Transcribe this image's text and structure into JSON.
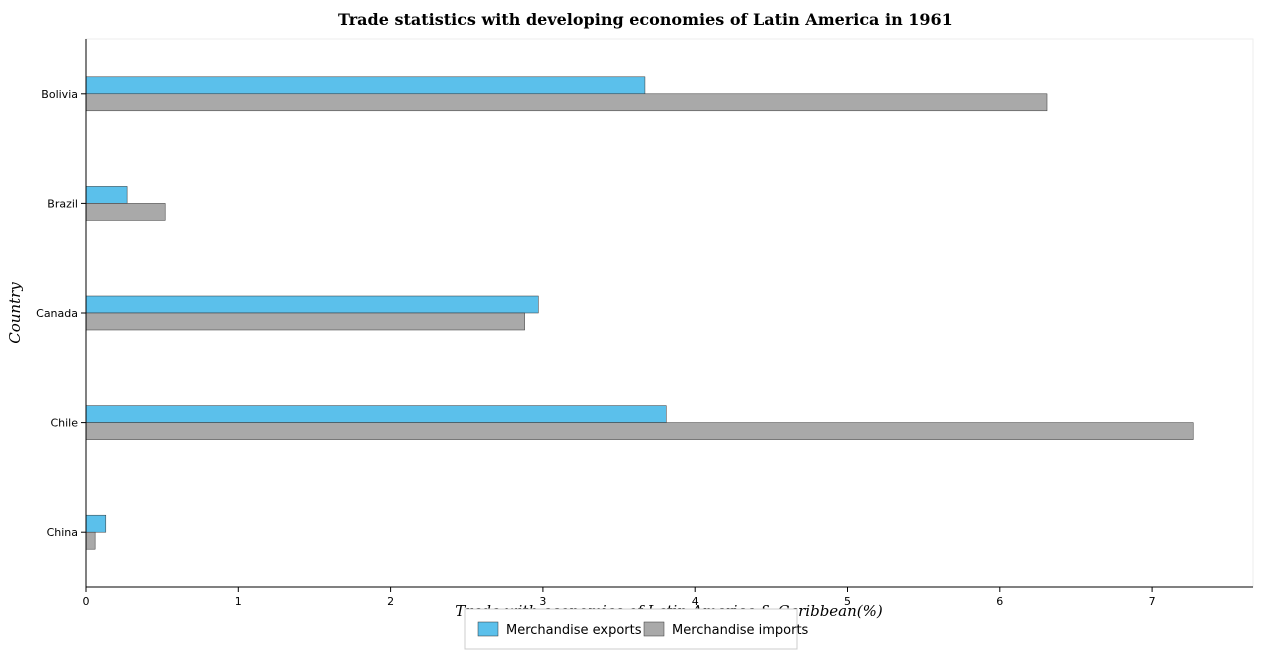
{
  "chart_data": {
    "type": "bar",
    "orientation": "horizontal",
    "title": "Trade statistics with developing economies of Latin America in 1961",
    "xlabel": "Trade with economies of Latin America & Caribbean(%)",
    "ylabel": "Country",
    "categories": [
      "Bolivia",
      "Brazil",
      "Canada",
      "Chile",
      "China"
    ],
    "series": [
      {
        "name": "Merchandise exports",
        "color": "#5bc0eb",
        "values": [
          3.67,
          0.27,
          2.97,
          3.81,
          0.13
        ]
      },
      {
        "name": "Merchandise imports",
        "color": "#a9a9a9",
        "values": [
          6.31,
          0.52,
          2.88,
          7.27,
          0.06
        ]
      }
    ],
    "xlim": [
      0,
      7.65
    ],
    "xticks": [
      "0",
      "1",
      "2",
      "3",
      "4",
      "5",
      "6",
      "7"
    ],
    "legend_position": "bottom-center",
    "grid": false
  }
}
